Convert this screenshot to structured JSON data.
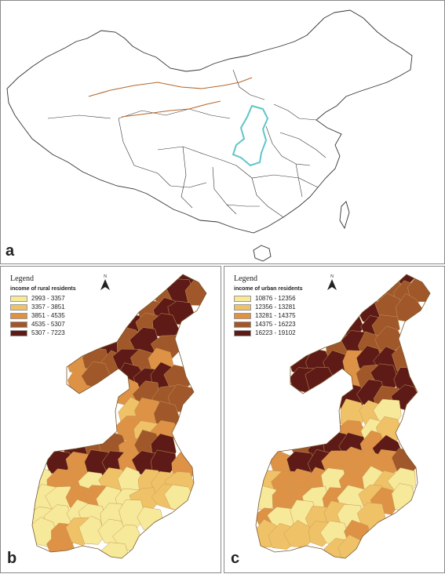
{
  "panels": {
    "a": {
      "letter": "a"
    },
    "b": {
      "letter": "b",
      "legend_title": "Legend",
      "legend_subtitle": "income of rural residents",
      "north_label": "N",
      "classes": [
        {
          "label": "2993 - 3357",
          "color": "#f7e99a"
        },
        {
          "label": "3357 - 3851",
          "color": "#f0c267"
        },
        {
          "label": "3851 - 4535",
          "color": "#dd9245"
        },
        {
          "label": "4535 - 5307",
          "color": "#a0572a"
        },
        {
          "label": "5307 - 7223",
          "color": "#5e1a16"
        }
      ]
    },
    "c": {
      "letter": "c",
      "legend_title": "Legend",
      "legend_subtitle": "income of urban residents",
      "north_label": "N",
      "classes": [
        {
          "label": "10876 - 12356",
          "color": "#f7e99a"
        },
        {
          "label": "12356 - 13281",
          "color": "#f0c267"
        },
        {
          "label": "13281 - 14375",
          "color": "#dd9245"
        },
        {
          "label": "14375 - 16223",
          "color": "#a0572a"
        },
        {
          "label": "16223 - 19102",
          "color": "#5e1a16"
        }
      ]
    }
  },
  "colors": {
    "china_outline": "#333333",
    "border_line": "#b5652a",
    "highlight_province": "#5fc6c9"
  }
}
